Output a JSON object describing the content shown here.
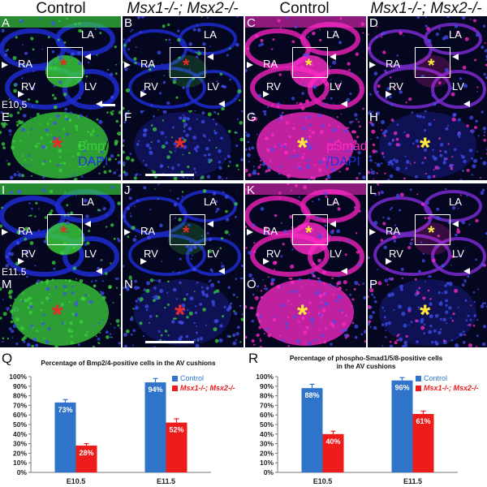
{
  "headers": {
    "control_left": "Control",
    "mutant_left": "Msx1-/-; Msx2-/-",
    "control_right": "Control",
    "mutant_right": "Msx1-/-; Msx2-/-"
  },
  "stages": {
    "e105": "E10.5",
    "e115": "E11.5"
  },
  "legend_bmp": {
    "part1": "Bmp",
    "slash1": "/",
    "part2": "DAPI"
  },
  "legend_psmad": {
    "part1": "pSmad",
    "part2": "/DAPI"
  },
  "panels": [
    {
      "label": "A",
      "stain": "bmp",
      "row": "overview",
      "stage_label": "E10.5"
    },
    {
      "label": "B",
      "stain": "bmp",
      "row": "overview"
    },
    {
      "label": "C",
      "stain": "psmad",
      "row": "overview"
    },
    {
      "label": "D",
      "stain": "psmad",
      "row": "overview"
    },
    {
      "label": "E",
      "stain": "bmp",
      "row": "zoom"
    },
    {
      "label": "F",
      "stain": "bmp",
      "row": "zoom"
    },
    {
      "label": "G",
      "stain": "psmad",
      "row": "zoom"
    },
    {
      "label": "H",
      "stain": "psmad",
      "row": "zoom"
    },
    {
      "label": "I",
      "stain": "bmp",
      "row": "overview",
      "stage_label": "E11.5"
    },
    {
      "label": "J",
      "stain": "bmp",
      "row": "overview"
    },
    {
      "label": "K",
      "stain": "psmad",
      "row": "overview"
    },
    {
      "label": "L",
      "stain": "psmad",
      "row": "overview"
    },
    {
      "label": "M",
      "stain": "bmp",
      "row": "zoom"
    },
    {
      "label": "N",
      "stain": "bmp",
      "row": "zoom"
    },
    {
      "label": "O",
      "stain": "psmad",
      "row": "zoom"
    },
    {
      "label": "P",
      "stain": "psmad",
      "row": "zoom"
    }
  ],
  "anatomy": {
    "ra": "RA",
    "la": "LA",
    "rv": "RV",
    "lv": "LV"
  },
  "colors": {
    "bmp_green": "#39d23a",
    "dapi_blue": "#2233dd",
    "psmad_magenta": "#ff2bc8",
    "control_bar": "#2f74c9",
    "mutant_bar": "#ee1b1b",
    "red_star": "#e52b2b",
    "yellow_star": "#ffe83a"
  },
  "chart_data": [
    {
      "letter": "Q",
      "type": "bar",
      "title": "Percentage of Bmp2/4-positive cells in the AV cushions",
      "categories": [
        "E10.5",
        "E11.5"
      ],
      "series": [
        {
          "name": "Control",
          "values": [
            73,
            94
          ],
          "labels": [
            "73%",
            "94%"
          ],
          "errors": [
            3,
            4
          ]
        },
        {
          "name": "Msx1-/-; Msx2-/-",
          "values": [
            28,
            52
          ],
          "labels": [
            "28%",
            "52%"
          ],
          "errors": [
            2,
            4
          ]
        }
      ],
      "ylim": [
        0,
        100
      ],
      "yticks": [
        "0%",
        "10%",
        "20%",
        "30%",
        "40%",
        "50%",
        "60%",
        "70%",
        "80%",
        "90%",
        "100%"
      ],
      "legend_position": "top-right"
    },
    {
      "letter": "R",
      "type": "bar",
      "title": "Percentage of phospho-Smad1/5/8-positive cells in the AV cushions",
      "title_line1": "Percentage of phospho-Smad1/5/8-positive cells",
      "title_line2": "in the AV cushions",
      "categories": [
        "E10.5",
        "E11.5"
      ],
      "series": [
        {
          "name": "Control",
          "values": [
            88,
            96
          ],
          "labels": [
            "88%",
            "96%"
          ],
          "errors": [
            4,
            3
          ]
        },
        {
          "name": "Msx1-/-; Msx2-/-",
          "values": [
            40,
            61
          ],
          "labels": [
            "40%",
            "61%"
          ],
          "errors": [
            3,
            3
          ]
        }
      ],
      "ylim": [
        0,
        100
      ],
      "yticks": [
        "0%",
        "10%",
        "20%",
        "30%",
        "40%",
        "50%",
        "60%",
        "70%",
        "80%",
        "90%",
        "100%"
      ],
      "legend_position": "top-right"
    }
  ]
}
